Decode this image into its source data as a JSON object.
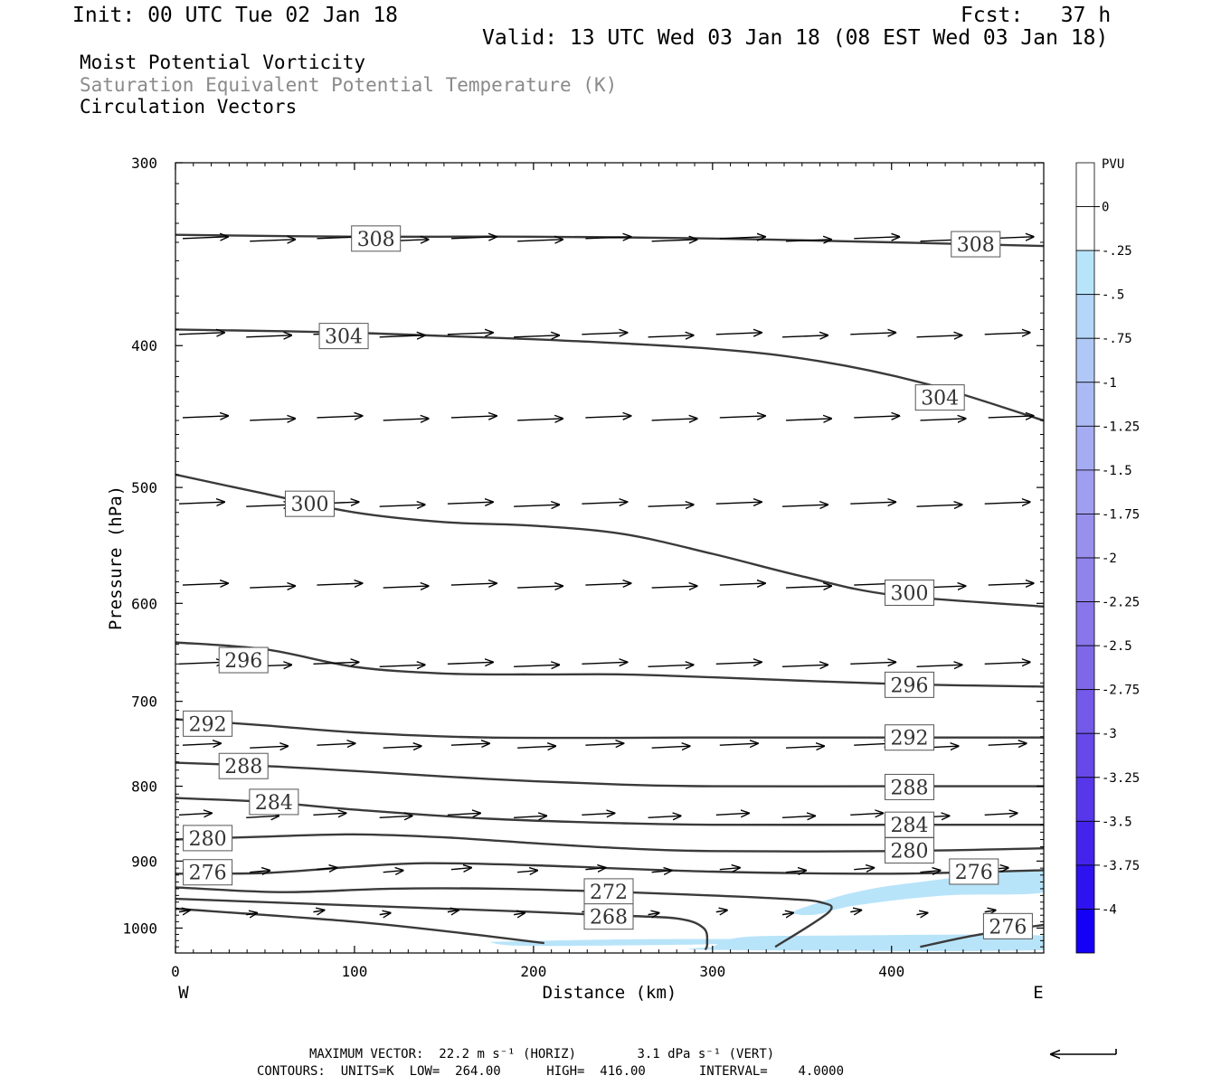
{
  "header": {
    "init": "Init: 00 UTC Tue 02 Jan 18",
    "fcst": "Fcst:   37 h",
    "valid": "Valid: 13 UTC Wed 03 Jan 18 (08 EST Wed 03 Jan 18)"
  },
  "legend": {
    "line1": "Moist Potential Vorticity",
    "line2": "Saturation Equivalent Potential Temperature (K)",
    "line3": "Circulation Vectors"
  },
  "footer": {
    "max_vector_label": "MAXIMUM VECTOR:",
    "max_vector_horiz": "22.2 m s⁻¹ (HORIZ)",
    "max_vector_vert": "3.1 dPa s⁻¹ (VERT)",
    "contours": "CONTOURS:  UNITS=K  LOW=  264.00      HIGH=  416.00       INTERVAL=    4.0000"
  },
  "chart_data": {
    "type": "cross-section",
    "xlabel": "Distance (km)",
    "ylabel": "Pressure (hPa)",
    "xlim": [
      0,
      485
    ],
    "ylim": [
      300,
      1040
    ],
    "y_scale": "log",
    "x_ticks": [
      0,
      100,
      200,
      300,
      400
    ],
    "y_ticks": [
      300,
      400,
      500,
      600,
      700,
      800,
      900,
      1000
    ],
    "x_end_labels": {
      "left": "W",
      "right": "E"
    },
    "colorbar": {
      "units": "PVU",
      "levels": [
        "0",
        "-.25",
        "-.5",
        "-.75",
        "-1",
        "-1.25",
        "-1.5",
        "-1.75",
        "-2",
        "-2.25",
        "-2.5",
        "-2.75",
        "-3",
        "-3.25",
        "-3.5",
        "-3.75",
        "-4"
      ],
      "colors": [
        "#ffffff",
        "#ffffff",
        "#b8e4fa",
        "#b4d6f8",
        "#b0c8f6",
        "#abbaf4",
        "#a6acf2",
        "#a09ef0",
        "#9990ee",
        "#9183ec",
        "#8876ea",
        "#7e68e8",
        "#735ae8",
        "#6649e8",
        "#5737ea",
        "#4424ec",
        "#2e12f0",
        "#1400f6"
      ]
    },
    "isentropes": [
      {
        "value": 308,
        "label": "308",
        "points": [
          [
            0,
            336
          ],
          [
            100,
            337
          ],
          [
            200,
            337
          ],
          [
            300,
            338
          ],
          [
            400,
            340
          ],
          [
            485,
            342
          ]
        ],
        "labels_at": [
          [
            112,
            338
          ],
          [
            447,
            341
          ]
        ]
      },
      {
        "value": 304,
        "label": "304",
        "points": [
          [
            0,
            390
          ],
          [
            100,
            392
          ],
          [
            200,
            396
          ],
          [
            300,
            402
          ],
          [
            360,
            410
          ],
          [
            420,
            425
          ],
          [
            485,
            450
          ]
        ],
        "labels_at": [
          [
            94,
            394
          ],
          [
            427,
            434
          ]
        ]
      },
      {
        "value": 300,
        "label": "300",
        "points": [
          [
            0,
            490
          ],
          [
            50,
            505
          ],
          [
            100,
            520
          ],
          [
            150,
            528
          ],
          [
            200,
            531
          ],
          [
            250,
            538
          ],
          [
            300,
            555
          ],
          [
            350,
            575
          ],
          [
            400,
            592
          ],
          [
            485,
            603
          ]
        ],
        "labels_at": [
          [
            75,
            513
          ],
          [
            410,
            590
          ]
        ]
      },
      {
        "value": 296,
        "label": "296",
        "points": [
          [
            0,
            638
          ],
          [
            50,
            645
          ],
          [
            100,
            663
          ],
          [
            150,
            670
          ],
          [
            200,
            671
          ],
          [
            250,
            671
          ],
          [
            300,
            674
          ],
          [
            400,
            681
          ],
          [
            485,
            684
          ]
        ],
        "labels_at": [
          [
            38,
            656
          ],
          [
            410,
            682
          ]
        ]
      },
      {
        "value": 292,
        "label": "292",
        "points": [
          [
            0,
            720
          ],
          [
            50,
            727
          ],
          [
            100,
            735
          ],
          [
            175,
            741
          ],
          [
            300,
            741
          ],
          [
            400,
            741
          ],
          [
            485,
            741
          ]
        ],
        "labels_at": [
          [
            18,
            725
          ],
          [
            410,
            741
          ]
        ]
      },
      {
        "value": 288,
        "label": "288",
        "points": [
          [
            0,
            771
          ],
          [
            50,
            775
          ],
          [
            100,
            781
          ],
          [
            175,
            791
          ],
          [
            250,
            798
          ],
          [
            300,
            800
          ],
          [
            400,
            800
          ],
          [
            485,
            800
          ]
        ],
        "labels_at": [
          [
            38,
            775
          ],
          [
            410,
            801
          ]
        ]
      },
      {
        "value": 284,
        "label": "284",
        "points": [
          [
            0,
            815
          ],
          [
            50,
            820
          ],
          [
            100,
            830
          ],
          [
            175,
            842
          ],
          [
            250,
            848
          ],
          [
            300,
            850
          ],
          [
            400,
            850
          ],
          [
            485,
            850
          ]
        ],
        "labels_at": [
          [
            55,
            820
          ],
          [
            410,
            850
          ]
        ]
      },
      {
        "value": 280,
        "label": "280",
        "points": [
          [
            0,
            870
          ],
          [
            50,
            866
          ],
          [
            100,
            863
          ],
          [
            150,
            867
          ],
          [
            200,
            875
          ],
          [
            250,
            882
          ],
          [
            300,
            886
          ],
          [
            400,
            886
          ],
          [
            485,
            882
          ]
        ],
        "labels_at": [
          [
            18,
            868
          ],
          [
            410,
            885
          ]
        ]
      },
      {
        "value": 276,
        "label": "276",
        "points": [
          [
            0,
            918
          ],
          [
            50,
            917
          ],
          [
            100,
            908
          ],
          [
            140,
            903
          ],
          [
            200,
            906
          ],
          [
            300,
            915
          ],
          [
            400,
            918
          ],
          [
            485,
            913
          ]
        ],
        "labels_at": [
          [
            18,
            916
          ],
          [
            446,
            915
          ]
        ]
      },
      {
        "value": 272,
        "label": "272",
        "points": [
          [
            0,
            938
          ],
          [
            60,
            945
          ],
          [
            120,
            940
          ],
          [
            180,
            940
          ],
          [
            250,
            945
          ],
          [
            300,
            950
          ],
          [
            340,
            955
          ],
          [
            360,
            960
          ],
          [
            365,
            975
          ],
          [
            335,
            1030
          ]
        ],
        "labels_at": [
          [
            242,
            944
          ]
        ]
      },
      {
        "value": 268,
        "label": "268",
        "points": [
          [
            0,
            955
          ],
          [
            100,
            965
          ],
          [
            200,
            975
          ],
          [
            240,
            980
          ],
          [
            280,
            985
          ],
          [
            295,
            1000
          ],
          [
            297,
            1025
          ],
          [
            296,
            1035
          ]
        ],
        "labels_at": [
          [
            242,
            982
          ]
        ]
      },
      {
        "value": 264,
        "label": "",
        "points": [
          [
            0,
            970
          ],
          [
            100,
            990
          ],
          [
            160,
            1008
          ],
          [
            206,
            1024
          ]
        ],
        "labels_at": []
      },
      {
        "value": 276,
        "label": "276",
        "points": [
          [
            416,
            1030
          ],
          [
            440,
            1015
          ],
          [
            460,
            1005
          ],
          [
            485,
            995
          ]
        ],
        "labels_at": [
          [
            465,
            997
          ]
        ]
      }
    ],
    "pv_regions": [
      {
        "level": "-.25 to -.5",
        "color": "#b8e4fa",
        "points": [
          [
            350,
            980
          ],
          [
            345,
            975
          ],
          [
            360,
            960
          ],
          [
            380,
            945
          ],
          [
            410,
            932
          ],
          [
            485,
            912
          ],
          [
            485,
            945
          ],
          [
            430,
            950
          ],
          [
            380,
            965
          ],
          [
            360,
            978
          ]
        ]
      },
      {
        "level": "-.25 to -.5",
        "color": "#b8e4fa",
        "points": [
          [
            175,
            1022
          ],
          [
            250,
            1018
          ],
          [
            330,
            1018
          ],
          [
            310,
            1025
          ],
          [
            240,
            1028
          ],
          [
            190,
            1028
          ]
        ]
      },
      {
        "level": "-.25 to -.5",
        "color": "#b8e4fa",
        "points": [
          [
            300,
            1030
          ],
          [
            315,
            1015
          ],
          [
            360,
            1012
          ],
          [
            485,
            1012
          ],
          [
            485,
            1035
          ],
          [
            300,
            1035
          ]
        ]
      }
    ],
    "vectors": {
      "rows": [
        338,
        393,
        448,
        513,
        583,
        660,
        750,
        837,
        912,
        975
      ],
      "columns": [
        0,
        37.5,
        75,
        112,
        150,
        187,
        225,
        262,
        300,
        337,
        375,
        412,
        450,
        485
      ],
      "note": "circulation vectors pointing eastward; length scales with horizontal wind"
    }
  }
}
